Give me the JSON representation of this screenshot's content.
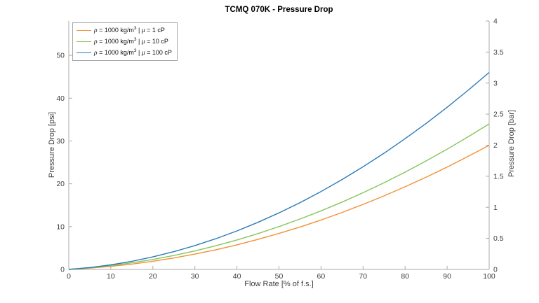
{
  "chart_data": {
    "type": "line",
    "title": "TCMQ 070K - Pressure Drop",
    "xlabel": "Flow Rate [% of f.s.]",
    "ylabel_left": "Pressure Drop [psi]",
    "ylabel_right": "Pressure Drop [bar]",
    "xlim": [
      0,
      100
    ],
    "ylim_left_psi": [
      0,
      58.02
    ],
    "ylim_right_bar": [
      0,
      4
    ],
    "x_ticks": [
      0,
      10,
      20,
      30,
      40,
      50,
      60,
      70,
      80,
      90,
      100
    ],
    "y_ticks_left_psi": [
      0,
      10,
      20,
      30,
      40,
      50
    ],
    "y_ticks_right_bar": [
      0,
      0.5,
      1,
      1.5,
      2,
      2.5,
      3,
      3.5,
      4
    ],
    "grid": false,
    "legend_position": "top-left",
    "axis_color": "#ababab",
    "tick_label_color": "#3d3d3d",
    "x": [
      0,
      5,
      10,
      15,
      20,
      25,
      30,
      35,
      40,
      45,
      50,
      55,
      60,
      65,
      70,
      75,
      80,
      85,
      90,
      95,
      100
    ],
    "series": [
      {
        "name": "rho = 1000 kg/m3 | mu = 1 cP",
        "color": "#F29135",
        "values_psi": [
          0,
          0.29,
          0.7,
          1.24,
          1.9,
          2.68,
          3.58,
          4.6,
          5.74,
          7.01,
          8.4,
          9.91,
          11.54,
          13.3,
          15.18,
          17.18,
          19.3,
          21.54,
          23.9,
          26.39,
          29.0
        ],
        "end_value_bar": 2.0,
        "legend_parts": {
          "rho": "ρ",
          "eq1": " = 1000 kg/m",
          "sup": "3",
          "sep": " | ",
          "mu": "μ",
          "eq2": " = 1 cP"
        }
      },
      {
        "name": "rho = 1000 kg/m3 | mu = 10 cP",
        "color": "#85C65B",
        "values_psi": [
          0,
          0.37,
          0.88,
          1.53,
          2.32,
          3.25,
          4.32,
          5.53,
          6.88,
          8.37,
          10.0,
          11.77,
          13.68,
          15.73,
          17.92,
          20.25,
          22.72,
          25.33,
          28.08,
          30.97,
          34.0
        ],
        "end_value_bar": 2.34,
        "legend_parts": {
          "rho": "ρ",
          "eq1": " = 1000 kg/m",
          "sup": "3",
          "sep": " | ",
          "mu": "μ",
          "eq2": " = 10 cP"
        }
      },
      {
        "name": "rho = 1000 kg/m3 | mu = 100 cP",
        "color": "#2B7BBA",
        "values_psi": [
          0,
          0.44,
          1.07,
          1.9,
          2.93,
          4.15,
          5.57,
          7.18,
          8.99,
          11.0,
          13.2,
          15.6,
          18.19,
          20.98,
          23.97,
          27.15,
          30.53,
          34.1,
          37.87,
          41.84,
          46.0
        ],
        "end_value_bar": 3.17,
        "legend_parts": {
          "rho": "ρ",
          "eq1": " = 1000 kg/m",
          "sup": "3",
          "sep": " | ",
          "mu": "μ",
          "eq2": " = 100 cP"
        }
      }
    ]
  }
}
